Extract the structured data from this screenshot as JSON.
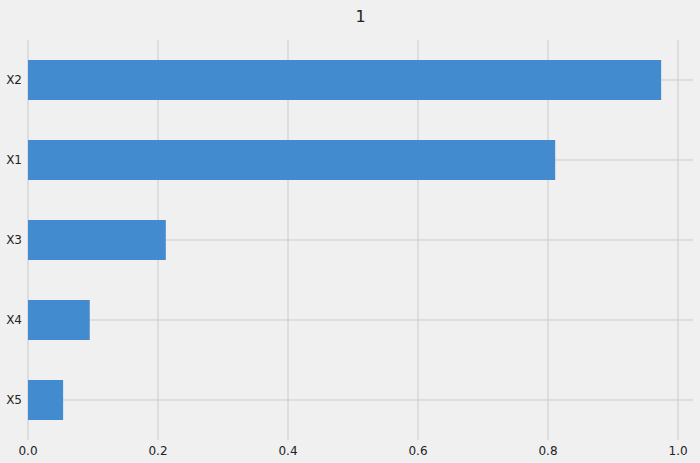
{
  "chart_data": {
    "type": "bar",
    "title": "1",
    "orientation": "horizontal",
    "categories": [
      "X2",
      "X1",
      "X3",
      "X4",
      "X5"
    ],
    "values": [
      0.974,
      0.811,
      0.212,
      0.095,
      0.054
    ],
    "color": "#428bcf",
    "xlim": [
      0,
      1.023
    ],
    "xticks": [
      {
        "value": 0,
        "label": "0.0"
      },
      0.2,
      0.4,
      0.6,
      0.8,
      {
        "value": 1,
        "label": "1.0"
      }
    ],
    "grid": true
  }
}
